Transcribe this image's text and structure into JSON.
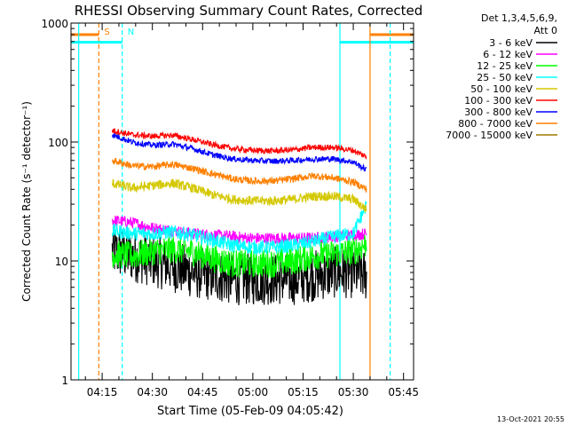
{
  "chart_data": {
    "type": "line",
    "title": "RHESSI Observing Summary Count Rates, Corrected",
    "xlabel": "Start Time (05-Feb-09 04:05:42)",
    "ylabel": "Corrected Count Rate (s⁻¹ detector⁻¹)",
    "y_scale": "log",
    "ylim": [
      1,
      1000
    ],
    "yticks": [
      {
        "value": 1,
        "label": "1"
      },
      {
        "value": 10,
        "label": "10"
      },
      {
        "value": 100,
        "label": "100"
      },
      {
        "value": 1000,
        "label": "1000"
      }
    ],
    "xlim": [
      "04:05:42",
      "05:48:00"
    ],
    "xticks": [
      "04:15",
      "04:30",
      "04:45",
      "05:00",
      "05:15",
      "05:30",
      "05:45"
    ],
    "legend_position": "top-right",
    "legend_header": [
      "Det 1,3,4,5,6,9,",
      "Att 0"
    ],
    "footer_date": "13-Oct-2021 20:55",
    "x_times": [
      "04:18",
      "04:24",
      "04:30",
      "04:36",
      "04:42",
      "04:48",
      "04:54",
      "05:00",
      "05:06",
      "05:12",
      "05:18",
      "05:24",
      "05:30",
      "05:34"
    ],
    "series": [
      {
        "name": "3 - 6 keV",
        "color": "#000000",
        "values": [
          12,
          11,
          10,
          9,
          8,
          7.5,
          7,
          7,
          7,
          7,
          7.5,
          8,
          8,
          7.5
        ],
        "noise": 0.22
      },
      {
        "name": "6 - 12 keV",
        "color": "#ff00ff",
        "values": [
          22,
          21,
          19,
          18,
          17,
          16.5,
          16,
          15.5,
          15.5,
          15.5,
          15.5,
          16,
          16.5,
          17
        ],
        "noise": 0.05
      },
      {
        "name": "12 - 25 keV",
        "color": "#00ff00",
        "values": [
          11.5,
          11,
          12,
          12.5,
          12,
          10.5,
          9.5,
          9.5,
          9.5,
          10,
          11,
          11.5,
          12,
          14
        ],
        "noise": 0.12
      },
      {
        "name": "25 - 50 keV",
        "color": "#00ffff",
        "values": [
          18,
          17,
          17,
          17.5,
          16.5,
          15,
          13.5,
          13,
          13,
          13.5,
          14.5,
          16,
          17,
          30
        ],
        "noise": 0.06
      },
      {
        "name": "50 - 100 keV",
        "color": "#d4c800",
        "values": [
          45,
          41,
          43,
          45,
          41,
          36,
          33,
          32,
          32,
          33,
          35,
          35,
          33,
          27
        ],
        "noise": 0.04
      },
      {
        "name": "100 - 300 keV",
        "color": "#ff0000",
        "values": [
          125,
          115,
          112,
          114,
          105,
          95,
          88,
          85,
          84,
          86,
          90,
          90,
          85,
          75
        ],
        "noise": 0.025
      },
      {
        "name": "300 - 800 keV",
        "color": "#0000ff",
        "values": [
          115,
          100,
          94,
          96,
          88,
          78,
          72,
          70,
          69,
          70,
          72,
          72,
          68,
          58
        ],
        "noise": 0.025
      },
      {
        "name": "800 - 7000 keV",
        "color": "#ff8000",
        "values": [
          70,
          63,
          62,
          65,
          60,
          54,
          49,
          47,
          47,
          49,
          52,
          50,
          46,
          40
        ],
        "noise": 0.03
      },
      {
        "name": "7000 - 15000 keV",
        "color": "#a07800",
        "values": [],
        "noise": 0
      }
    ],
    "markers": [
      {
        "time": "04:14",
        "color": "#ff8000",
        "dashed": true,
        "label": "S",
        "bar": "left"
      },
      {
        "time": "04:21",
        "color": "#00ffff",
        "dashed": true,
        "label": "N",
        "bar": "left"
      },
      {
        "time": "05:26",
        "color": "#00ffff",
        "dashed": false,
        "label": "",
        "bar": "right"
      },
      {
        "time": "05:35",
        "color": "#ff8000",
        "dashed": false,
        "label": "",
        "bar": "right"
      },
      {
        "time": "05:41",
        "color": "#00ffff",
        "dashed": true,
        "label": "",
        "bar": "none"
      },
      {
        "time": "04:08",
        "color": "#00ffff",
        "dashed": false,
        "label": "",
        "bar": "none"
      }
    ]
  }
}
